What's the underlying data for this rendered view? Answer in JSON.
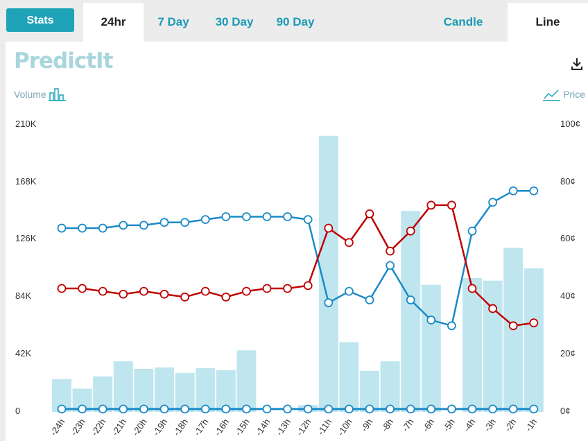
{
  "tabs": {
    "stats_label": "Stats",
    "range": [
      "24hr",
      "7 Day",
      "30 Day",
      "90 Day"
    ],
    "style": [
      "Candle",
      "Line"
    ]
  },
  "logo_text": "PredictIt",
  "legend": {
    "volume_label": "Volume",
    "price_label": "Price"
  },
  "colors": {
    "accent": "#1fa3b8",
    "bar": "#bfe6ef",
    "series_blue": "#1b8ac8",
    "series_red": "#c00000",
    "flat_line": "#1b8ac8"
  },
  "icons": [
    "download-icon",
    "volume-bars-icon",
    "price-line-icon"
  ],
  "chart_data": {
    "type": "bar+line",
    "categories": [
      "-24h",
      "-23h",
      "-22h",
      "-21h",
      "-20h",
      "-19h",
      "-18h",
      "-17h",
      "-16h",
      "-15h",
      "-14h",
      "-13h",
      "-12h",
      "-11h",
      "-10h",
      "-9h",
      "-8h",
      "-7h",
      "-6h",
      "-5h",
      "-4h",
      "-3h",
      "-2h",
      "-1h"
    ],
    "volume": [
      24000,
      17000,
      26000,
      37000,
      31500,
      32500,
      28500,
      32000,
      30500,
      45000,
      0,
      0,
      5000,
      202000,
      51000,
      30000,
      37000,
      147000,
      93000,
      0,
      98000,
      96000,
      120000,
      105000
    ],
    "left_axis": {
      "ticks": [
        "0",
        "42K",
        "84K",
        "126K",
        "168K",
        "210K"
      ],
      "ylim": [
        0,
        210000
      ]
    },
    "right_axis": {
      "ticks": [
        "0¢",
        "20¢",
        "40¢",
        "60¢",
        "80¢",
        "100¢"
      ],
      "ylim": [
        0,
        100
      ]
    },
    "series": [
      {
        "values": [
          64,
          64,
          64,
          65,
          65,
          66,
          66,
          67,
          68,
          68,
          68,
          68,
          67,
          38,
          42,
          39,
          51,
          39,
          32,
          30,
          63,
          73,
          77,
          77
        ]
      },
      {
        "values": [
          43,
          43,
          42,
          41,
          42,
          41,
          40,
          42,
          40,
          42,
          43,
          43,
          44,
          64,
          59,
          69,
          56,
          63,
          72,
          72,
          43,
          36,
          30,
          31
        ]
      },
      {
        "values": [
          1,
          1,
          1,
          1,
          1,
          1,
          1,
          1,
          1,
          1,
          1,
          1,
          1,
          1,
          1,
          1,
          1,
          1,
          1,
          1,
          1,
          1,
          1,
          1
        ]
      }
    ]
  }
}
